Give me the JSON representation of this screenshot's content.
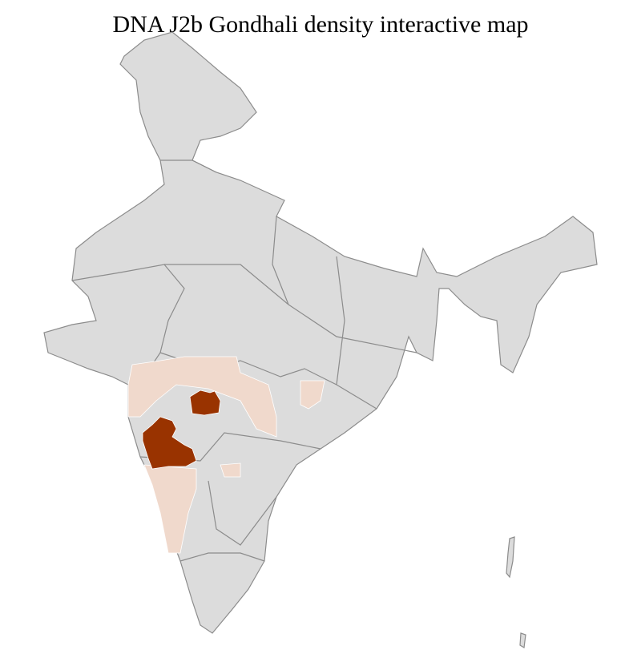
{
  "title": "DNA J2b Gondhali density interactive map",
  "colors": {
    "base": "#dcdcdc",
    "border_district": "#ffffff",
    "border_state": "#8c8c8c",
    "density_high": "#993300",
    "density_low": "#f0d9cc"
  },
  "legend": null
}
